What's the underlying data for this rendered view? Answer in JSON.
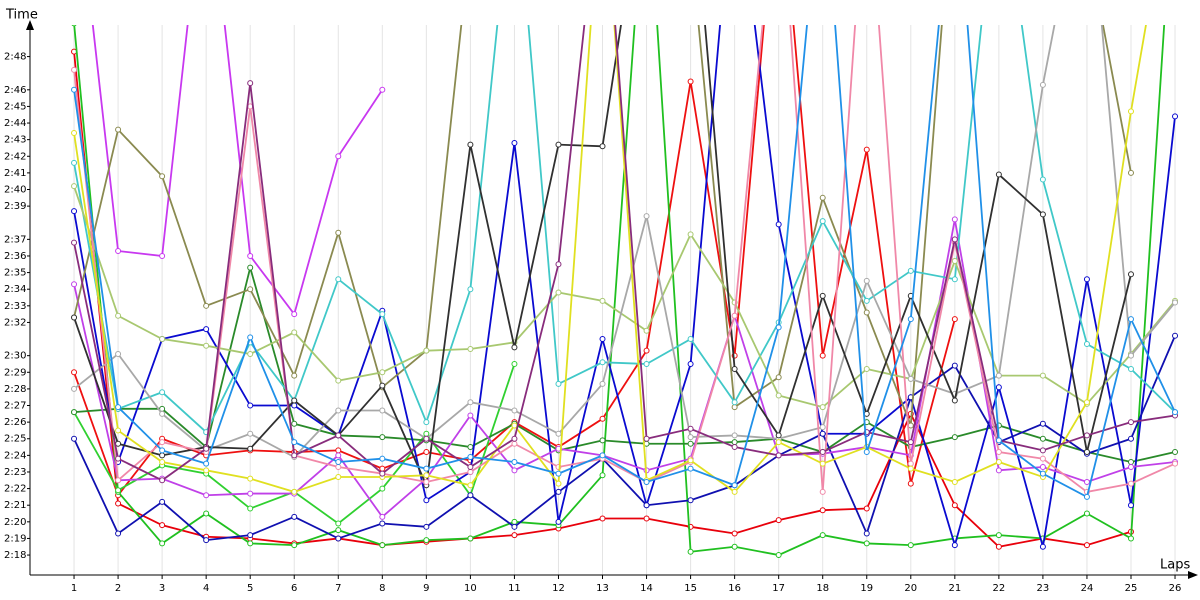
{
  "chart_data": {
    "type": "line",
    "x_label": "Laps",
    "y_label": "Time",
    "x": [
      1,
      2,
      3,
      4,
      5,
      6,
      7,
      8,
      9,
      10,
      11,
      12,
      13,
      14,
      15,
      16,
      17,
      18,
      19,
      20,
      21,
      22,
      23,
      24,
      25,
      26
    ],
    "xlim": [
      0,
      26.34
    ],
    "ylim": [
      136.8,
      169.9
    ],
    "xticks": [
      1,
      2,
      3,
      4,
      5,
      6,
      7,
      8,
      9,
      10,
      11,
      12,
      13,
      14,
      15,
      16,
      17,
      18,
      19,
      20,
      21,
      22,
      23,
      24,
      25,
      26
    ],
    "yticks": [
      {
        "value": 138,
        "label": "2:18"
      },
      {
        "value": 139,
        "label": "2:19"
      },
      {
        "value": 140,
        "label": "2:20"
      },
      {
        "value": 141,
        "label": "2:21"
      },
      {
        "value": 142,
        "label": "2:22"
      },
      {
        "value": 143,
        "label": "2:23"
      },
      {
        "value": 144,
        "label": "2:24"
      },
      {
        "value": 145,
        "label": "2:25"
      },
      {
        "value": 146,
        "label": "2:26"
      },
      {
        "value": 147,
        "label": "2:27"
      },
      {
        "value": 148,
        "label": "2:28"
      },
      {
        "value": 149,
        "label": "2:29"
      },
      {
        "value": 150,
        "label": "2:30"
      },
      {
        "value": 152,
        "label": "2:32"
      },
      {
        "value": 153,
        "label": "2:33"
      },
      {
        "value": 154,
        "label": "2:34"
      },
      {
        "value": 155,
        "label": "2:35"
      },
      {
        "value": 156,
        "label": "2:36"
      },
      {
        "value": 157,
        "label": "2:37"
      },
      {
        "value": 159,
        "label": "2:39"
      },
      {
        "value": 160,
        "label": "2:40"
      },
      {
        "value": 161,
        "label": "2:41"
      },
      {
        "value": 162,
        "label": "2:42"
      },
      {
        "value": 163,
        "label": "2:43"
      },
      {
        "value": 164,
        "label": "2:44"
      },
      {
        "value": 165,
        "label": "2:45"
      },
      {
        "value": 166,
        "label": "2:46"
      },
      {
        "value": 168,
        "label": "2:48"
      }
    ],
    "xgrid": true,
    "series": [
      {
        "color": "#e8000b",
        "values": [
          168.3,
          141.1,
          139.8,
          139.1,
          139.0,
          138.7,
          139.0,
          138.6,
          138.8,
          139.0,
          139.2,
          139.6,
          140.2,
          140.2,
          139.7,
          139.3,
          140.1,
          140.7,
          140.8,
          146.5,
          141.0,
          138.5,
          139.0,
          138.6,
          139.4,
          null
        ]
      },
      {
        "color": "#ee1010",
        "values": [
          149.0,
          141.6,
          145.0,
          144.0,
          144.3,
          144.2,
          144.3,
          143.2,
          144.2,
          143.7,
          146.0,
          144.5,
          146.2,
          150.3,
          166.5,
          150.0,
          180,
          150.0,
          162.4,
          142.3,
          152.2,
          null,
          null,
          null,
          null,
          null
        ]
      },
      {
        "color": "#20c020",
        "values": [
          170.0,
          141.8,
          138.7,
          140.5,
          138.7,
          138.6,
          139.5,
          138.6,
          138.9,
          139.0,
          140.0,
          139.8,
          142.8,
          180,
          138.2,
          138.5,
          138.0,
          139.2,
          138.7,
          138.6,
          139.0,
          139.2,
          139.0,
          140.5,
          139.0,
          180
        ]
      },
      {
        "color": "#30d030",
        "values": [
          146.6,
          141.9,
          143.4,
          142.9,
          140.8,
          141.8,
          139.9,
          142.0,
          145.3,
          141.6,
          149.5,
          null,
          null,
          null,
          null,
          null,
          null,
          null,
          null,
          null,
          null,
          null,
          null,
          null,
          null,
          null
        ]
      },
      {
        "color": "#2a8a2a",
        "values": [
          146.6,
          146.8,
          146.8,
          144.5,
          155.3,
          145.9,
          145.2,
          145.1,
          144.9,
          144.5,
          145.9,
          144.3,
          144.9,
          144.7,
          144.7,
          144.8,
          145.0,
          144.2,
          146.0,
          144.5,
          145.1,
          145.8,
          145.0,
          144.2,
          143.6,
          144.2
        ]
      },
      {
        "color": "#0a0ad0",
        "values": [
          158.7,
          143.6,
          151.0,
          151.6,
          147.0,
          147.0,
          145.2,
          152.7,
          141.3,
          143.0,
          162.8,
          140.0,
          151.0,
          141.0,
          149.5,
          180,
          157.9,
          145.3,
          145.3,
          147.5,
          138.6,
          148.1,
          138.5,
          154.6,
          141.0,
          164.4
        ]
      },
      {
        "color": "#1010b0",
        "values": [
          145.0,
          139.3,
          141.2,
          138.9,
          139.2,
          140.3,
          139.0,
          139.9,
          139.7,
          141.6,
          139.7,
          141.8,
          143.8,
          141.0,
          141.3,
          142.2,
          144.0,
          145.3,
          139.3,
          147.5,
          149.4,
          144.8,
          145.9,
          144.1,
          145.0,
          151.2
        ]
      },
      {
        "color": "#c040e8",
        "values": [
          154.3,
          142.5,
          142.6,
          141.6,
          141.7,
          141.7,
          144.0,
          140.3,
          142.6,
          146.4,
          143.1,
          144.4,
          144.0,
          143.1,
          143.8,
          152.4,
          144.0,
          144.1,
          144.5,
          144.0,
          158.2,
          143.1,
          143.3,
          142.4,
          143.3,
          143.6
        ]
      },
      {
        "color": "#c838f0",
        "values": [
          180,
          156.3,
          156.0,
          180,
          156.0,
          152.5,
          162.0,
          166.0,
          null,
          null,
          null,
          null,
          null,
          null,
          null,
          null,
          null,
          null,
          null,
          null,
          null,
          null,
          null,
          null,
          null,
          null
        ]
      },
      {
        "color": "#8a8a50",
        "values": [
          152.3,
          163.6,
          160.8,
          153.0,
          154.0,
          148.8,
          157.4,
          148.1,
          150.3,
          175,
          null,
          null,
          null,
          null,
          175,
          146.9,
          148.7,
          159.5,
          152.6,
          145.8,
          180,
          null,
          null,
          175,
          161.0,
          null
        ]
      },
      {
        "color": "#40c8c8",
        "values": [
          161.6,
          146.8,
          147.8,
          145.4,
          150.8,
          147.3,
          154.6,
          152.5,
          146.0,
          154.0,
          180,
          148.3,
          149.6,
          149.5,
          151.0,
          147.2,
          152.0,
          158.1,
          153.3,
          155.1,
          154.6,
          180,
          160.6,
          150.7,
          149.2,
          146.6
        ]
      },
      {
        "color": "#a8c870",
        "values": [
          160.2,
          152.4,
          151.0,
          150.6,
          150.1,
          151.4,
          148.5,
          149.0,
          150.3,
          150.4,
          150.8,
          153.8,
          153.3,
          151.5,
          157.3,
          153.2,
          147.6,
          146.9,
          149.2,
          148.6,
          155.7,
          148.8,
          148.8,
          147.1,
          150.1,
          153.3
        ]
      },
      {
        "color": "#a8a8a8",
        "values": [
          148.0,
          150.1,
          146.5,
          144.3,
          145.3,
          143.9,
          146.7,
          146.7,
          145.0,
          147.2,
          146.7,
          145.3,
          148.3,
          158.4,
          145.1,
          145.2,
          145.0,
          145.7,
          154.5,
          148.6,
          147.7,
          148.8,
          166.3,
          180,
          150.0,
          153.2
        ]
      },
      {
        "color": "#303030",
        "values": [
          152.3,
          144.7,
          144.0,
          144.5,
          144.4,
          147.3,
          145.2,
          148.2,
          142.2,
          162.7,
          150.5,
          162.7,
          162.6,
          180,
          180,
          149.2,
          145.2,
          153.6,
          146.5,
          153.6,
          147.3,
          160.9,
          158.5,
          144.2,
          154.9,
          null
        ]
      },
      {
        "color": "#f088a8",
        "values": [
          167.2,
          142.5,
          144.8,
          144.2,
          165.0,
          144.0,
          143.3,
          142.9,
          142.4,
          143.0,
          144.7,
          143.3,
          143.8,
          142.4,
          143.6,
          152.4,
          180,
          141.8,
          180,
          143.5,
          156.8,
          144.2,
          143.8,
          141.8,
          142.3,
          143.5
        ]
      },
      {
        "color": "#e0e020",
        "values": [
          163.4,
          145.5,
          143.6,
          143.1,
          142.6,
          141.8,
          142.7,
          142.7,
          142.8,
          142.2,
          145.8,
          142.3,
          180,
          142.5,
          143.7,
          141.8,
          144.8,
          143.5,
          144.5,
          143.2,
          142.4,
          143.6,
          142.7,
          147.2,
          164.7,
          180
        ]
      },
      {
        "color": "#882c7c",
        "values": [
          156.8,
          143.8,
          142.5,
          144.4,
          166.4,
          144.0,
          145.2,
          142.9,
          145.0,
          143.3,
          145.0,
          155.5,
          180,
          145.0,
          145.6,
          144.5,
          144.0,
          144.2,
          145.4,
          144.8,
          157.0,
          144.9,
          144.3,
          145.2,
          146.0,
          146.4
        ]
      },
      {
        "color": "#2090e8",
        "values": [
          166.0,
          146.9,
          144.3,
          143.5,
          151.1,
          144.8,
          143.6,
          143.8,
          143.2,
          143.9,
          143.6,
          142.9,
          144.0,
          142.4,
          143.2,
          142.2,
          151.7,
          180,
          144.2,
          152.2,
          180,
          144.9,
          142.9,
          141.5,
          152.2,
          146.6
        ]
      }
    ]
  }
}
